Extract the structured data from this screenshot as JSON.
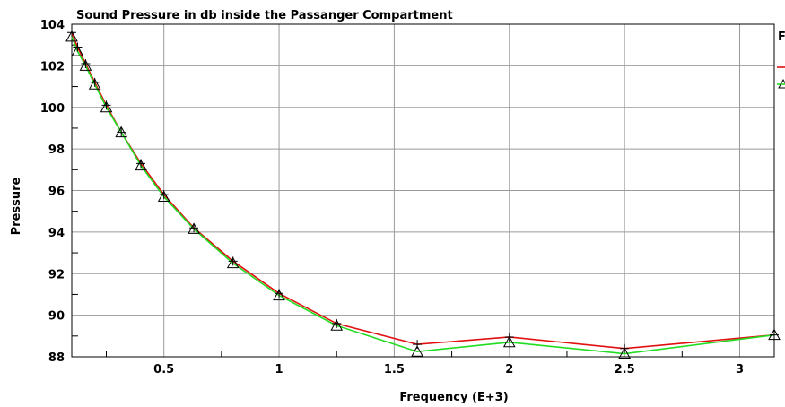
{
  "chart_data": {
    "type": "line",
    "title": "Sound Pressure in db inside the Passanger Compartment",
    "xlabel": "Frequency (E+3)",
    "ylabel": "Pressure",
    "xlim": [
      0.1,
      3.15
    ],
    "ylim": [
      88,
      104
    ],
    "x_ticks": [
      "0.5",
      "1",
      "1.5",
      "2",
      "2.5",
      "3"
    ],
    "y_ticks": [
      "88",
      "90",
      "92",
      "94",
      "96",
      "98",
      "100",
      "102",
      "104"
    ],
    "grid": true,
    "legend": {
      "placement": "right, clipped",
      "title": "F"
    },
    "x": [
      0.1,
      0.125,
      0.16,
      0.2,
      0.25,
      0.315,
      0.4,
      0.5,
      0.63,
      0.8,
      1.0,
      1.25,
      1.6,
      2.0,
      2.5,
      3.15
    ],
    "series": [
      {
        "color": "#e01010",
        "marker": "plus",
        "values": [
          103.6,
          102.9,
          102.1,
          101.2,
          100.1,
          98.8,
          97.3,
          95.8,
          94.2,
          92.6,
          91.05,
          89.6,
          88.6,
          88.95,
          88.4,
          89.05
        ]
      },
      {
        "color": "#22dd22",
        "marker": "triangle",
        "values": [
          103.4,
          102.7,
          102.0,
          101.1,
          100.0,
          98.8,
          97.2,
          95.7,
          94.15,
          92.5,
          90.95,
          89.5,
          88.25,
          88.7,
          88.15,
          89.05
        ]
      }
    ]
  }
}
